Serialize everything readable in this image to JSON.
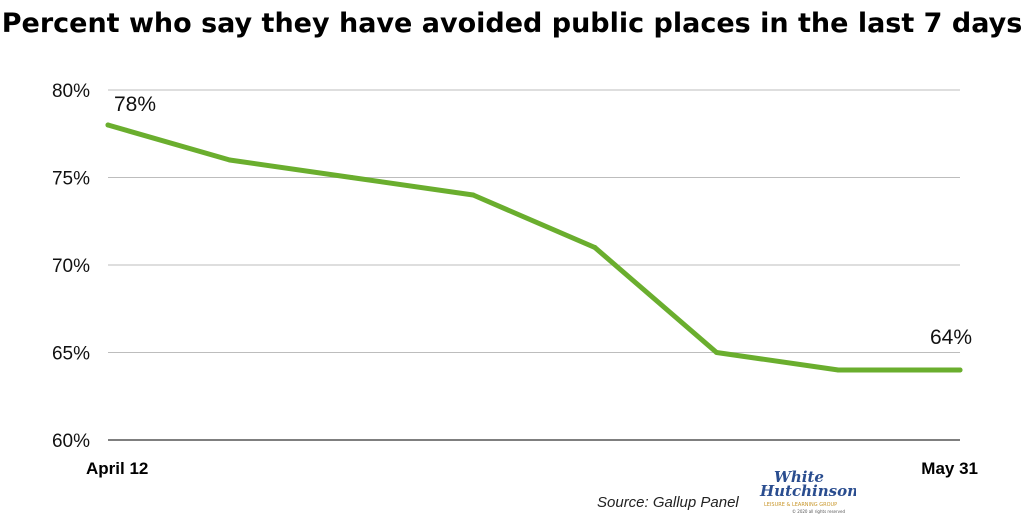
{
  "chart_data": {
    "type": "line",
    "title": "Percent who say they have avoided public places in the last 7 days",
    "x_labels": [
      "April 12",
      "May 31"
    ],
    "values": [
      78,
      76,
      75,
      74,
      71,
      65,
      64,
      64
    ],
    "ylim": [
      60,
      80
    ],
    "yticks": [
      "60%",
      "65%",
      "70%",
      "75%",
      "80%"
    ],
    "data_labels": [
      {
        "index": 0,
        "text": "78%"
      },
      {
        "index": 7,
        "text": "64%"
      }
    ],
    "line_color": "#6aae2e",
    "grid": true
  },
  "source": "Source: Gallup Panel",
  "logo": {
    "line1": "White",
    "line2": "Hutchinson",
    "tagline": "LEISURE & LEARNING GROUP",
    "copyright": "© 2020 all rights reserved"
  }
}
